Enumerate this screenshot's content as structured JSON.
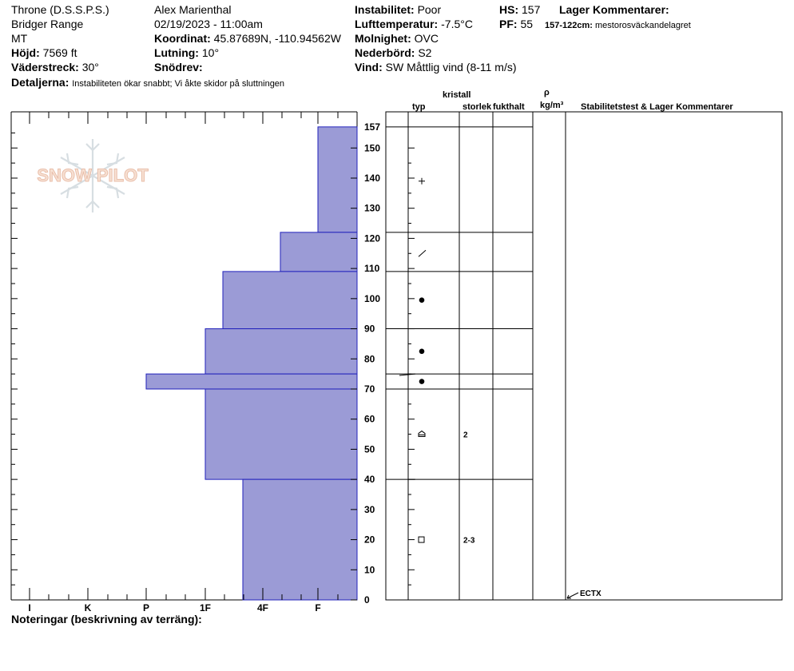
{
  "header": {
    "location": "Throne (D.S.S.P.S.)",
    "range": "Bridger Range",
    "state": "MT",
    "elevation_label": "Höjd:",
    "elevation_value": "7569 ft",
    "aspect_label": "Väderstreck:",
    "aspect_value": "30°",
    "details_label": "Detaljerna:",
    "details_value": "Instabiliteten ökar snabbt; Vi åkte skidor på sluttningen",
    "observer": "Alex Marienthal",
    "datetime": "02/19/2023 - 11:00am",
    "coord_label": "Koordinat:",
    "coord_value": "45.87689N, -110.94562W",
    "slope_label": "Lutning:",
    "slope_value": "10°",
    "drift_label": "Snödrev:",
    "instability_label": "Instabilitet:",
    "instability_value": "Poor",
    "airtemp_label": "Lufttemperatur:",
    "airtemp_value": "-7.5°C",
    "sky_label": "Molnighet:",
    "sky_value": "OVC",
    "precip_label": "Nederbörd:",
    "precip_value": "S2",
    "wind_label": "Vind:",
    "wind_value": "SW  Måttlig vind (8-11 m/s)",
    "hs_label": "HS:",
    "hs_value": "157",
    "pf_label": "PF:",
    "pf_value": "55",
    "layer_comments_label": "Lager Kommentarer:",
    "layer_comment_range": "157-122cm:",
    "layer_comment_text": "mestorosväckandelagret"
  },
  "columns": {
    "crystal": "kristall",
    "type": "typ",
    "size": "storlek",
    "moisture": "fukthalt",
    "rho": "ρ",
    "density_unit": "kg/m³",
    "stability": "Stabilitetstest & Lager Kommentarer"
  },
  "footer": {
    "notes_label": "Noteringar (beskrivning av terräng):"
  },
  "logo": {
    "text": "SNOW PILOT"
  },
  "colors": {
    "hardness_fill": "#9b9bd6",
    "hardness_stroke": "#2222bb",
    "grid": "#000000"
  },
  "chart_data": {
    "type": "bar",
    "title": "",
    "xlabel": "",
    "ylabel": "",
    "y_range": [
      0,
      157
    ],
    "y_ticks": [
      0,
      10,
      20,
      30,
      40,
      50,
      60,
      70,
      80,
      90,
      100,
      110,
      120,
      130,
      140,
      150
    ],
    "y_top_label": "157",
    "hardness_ticks": [
      "I",
      "K",
      "P",
      "1F",
      "4F",
      "F"
    ],
    "hardness_layers": [
      {
        "top": 157,
        "bottom": 122,
        "hardness": "F"
      },
      {
        "top": 122,
        "bottom": 109,
        "hardness": "F+"
      },
      {
        "top": 109,
        "bottom": 90,
        "hardness": "4F+"
      },
      {
        "top": 90,
        "bottom": 75,
        "hardness": "1F"
      },
      {
        "top": 75,
        "bottom": 70,
        "hardness": "P-"
      },
      {
        "top": 70,
        "bottom": 40,
        "hardness": "1F"
      },
      {
        "top": 40,
        "bottom": 0,
        "hardness": "4F-"
      }
    ],
    "grain_layers": [
      {
        "height": 139,
        "symbol": "+",
        "size": ""
      },
      {
        "height": 115,
        "symbol": "/",
        "size": ""
      },
      {
        "height": 99.5,
        "symbol": "●",
        "size": ""
      },
      {
        "height": 82.5,
        "symbol": "●",
        "size": ""
      },
      {
        "height": 72.5,
        "symbol": "●",
        "size": ""
      },
      {
        "height": 55,
        "symbol": "⌂",
        "size": "2"
      },
      {
        "height": 20,
        "symbol": "□",
        "size": "2-3"
      }
    ],
    "stability_tests": [
      {
        "height": 0,
        "label": "ECTX"
      }
    ]
  }
}
